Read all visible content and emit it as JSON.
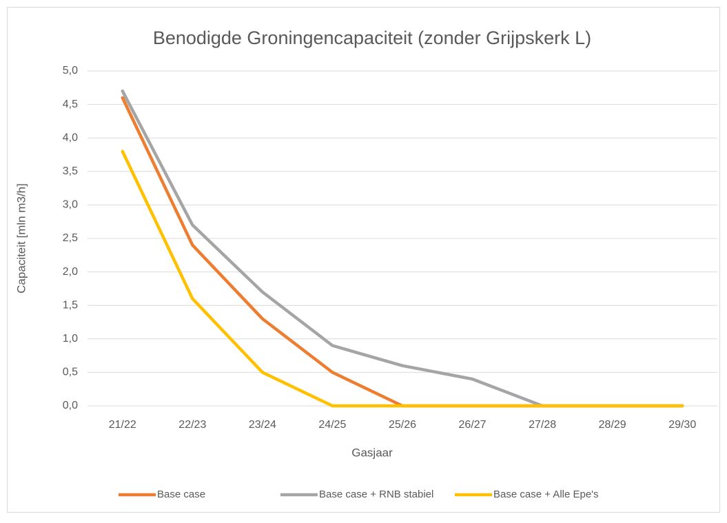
{
  "chart_data": {
    "type": "line",
    "title": "Benodigde Groningencapaciteit (zonder Grijpskerk L)",
    "x_label": "Gasjaar",
    "y_label": "Capaciteit [mln m3/h]",
    "categories": [
      "21/22",
      "22/23",
      "23/24",
      "24/25",
      "25/26",
      "26/27",
      "27/28",
      "28/29",
      "29/30"
    ],
    "series": [
      {
        "name": "Base case",
        "color": "#ed7d31",
        "values": [
          4.6,
          2.4,
          1.3,
          0.5,
          0,
          0,
          0,
          0,
          0
        ]
      },
      {
        "name": "Base case + RNB stabiel",
        "color": "#a5a5a5",
        "values": [
          4.7,
          2.7,
          1.7,
          0.9,
          0.6,
          0.4,
          0,
          0,
          0
        ]
      },
      {
        "name": "Base case + Alle Epe's",
        "color": "#ffc000",
        "values": [
          3.8,
          1.6,
          0.5,
          0,
          0,
          0,
          0,
          0,
          0
        ]
      }
    ],
    "ylim": [
      0,
      5
    ],
    "yticks": [
      {
        "value": 0,
        "label": "0,0"
      },
      {
        "value": 0.5,
        "label": "0,5"
      },
      {
        "value": 1,
        "label": "1,0"
      },
      {
        "value": 1.5,
        "label": "1,5"
      },
      {
        "value": 2,
        "label": "2,0"
      },
      {
        "value": 2.5,
        "label": "2,5"
      },
      {
        "value": 3,
        "label": "3,0"
      },
      {
        "value": 3.5,
        "label": "3,5"
      },
      {
        "value": 4,
        "label": "4,0"
      },
      {
        "value": 4.5,
        "label": "4,5"
      },
      {
        "value": 5,
        "label": "5,0"
      }
    ],
    "grid": true,
    "legend": "bottom"
  }
}
